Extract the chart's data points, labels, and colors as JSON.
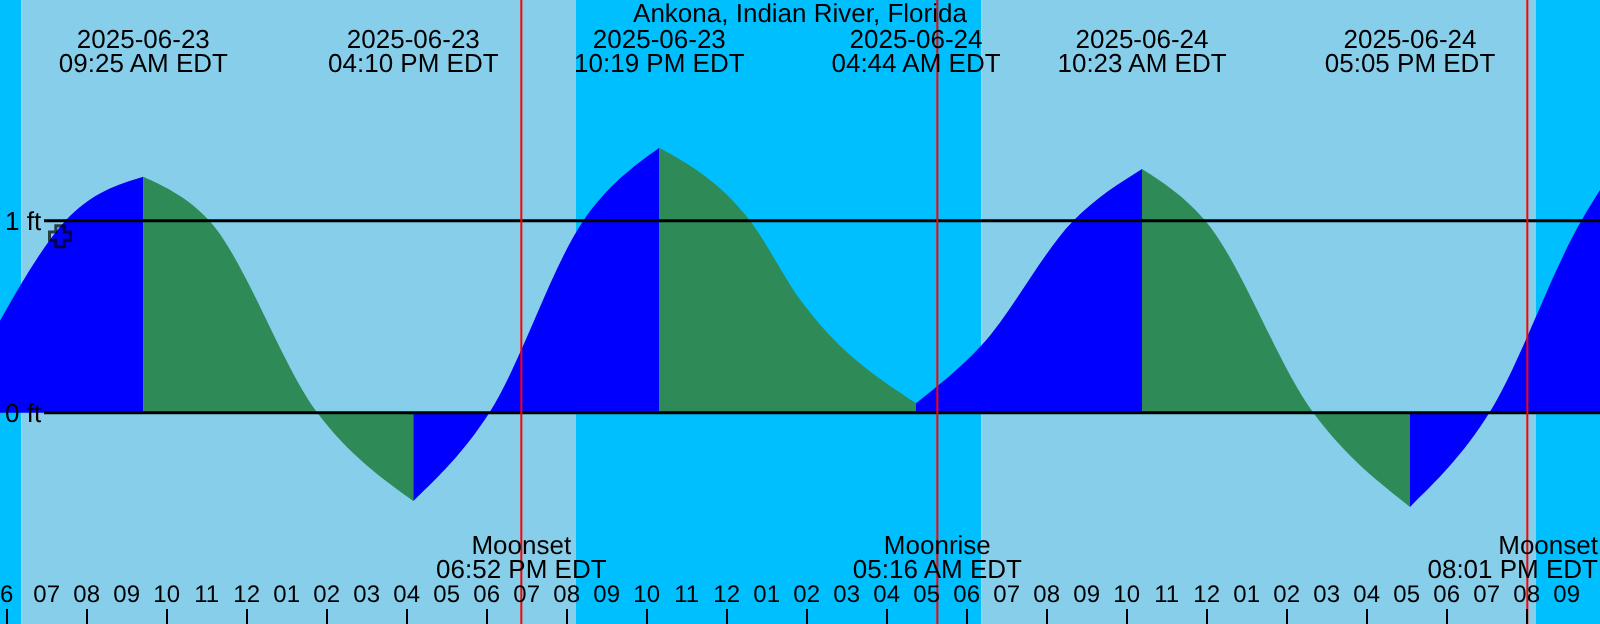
{
  "chart_data": {
    "type": "area",
    "title": "Ankona, Indian River, Florida",
    "xlim": [
      "2025-06-23T05:50",
      "2025-06-24T21:50"
    ],
    "ylim": [
      -1.1,
      2.15
    ],
    "xticks": [
      {
        "value": "2025-06-23T06:00",
        "label": "6"
      },
      {
        "value": "2025-06-23T07:00",
        "label": "07"
      },
      {
        "value": "2025-06-23T08:00",
        "label": "08"
      },
      {
        "value": "2025-06-23T09:00",
        "label": "09"
      },
      {
        "value": "2025-06-23T10:00",
        "label": "10"
      },
      {
        "value": "2025-06-23T11:00",
        "label": "11"
      },
      {
        "value": "2025-06-23T12:00",
        "label": "12"
      },
      {
        "value": "2025-06-23T13:00",
        "label": "01"
      },
      {
        "value": "2025-06-23T14:00",
        "label": "02"
      },
      {
        "value": "2025-06-23T15:00",
        "label": "03"
      },
      {
        "value": "2025-06-23T16:00",
        "label": "04"
      },
      {
        "value": "2025-06-23T17:00",
        "label": "05"
      },
      {
        "value": "2025-06-23T18:00",
        "label": "06"
      },
      {
        "value": "2025-06-23T19:00",
        "label": "07"
      },
      {
        "value": "2025-06-23T20:00",
        "label": "08"
      },
      {
        "value": "2025-06-23T21:00",
        "label": "09"
      },
      {
        "value": "2025-06-23T22:00",
        "label": "10"
      },
      {
        "value": "2025-06-23T23:00",
        "label": "11"
      },
      {
        "value": "2025-06-24T00:00",
        "label": "12"
      },
      {
        "value": "2025-06-24T01:00",
        "label": "01"
      },
      {
        "value": "2025-06-24T02:00",
        "label": "02"
      },
      {
        "value": "2025-06-24T03:00",
        "label": "03"
      },
      {
        "value": "2025-06-24T04:00",
        "label": "04"
      },
      {
        "value": "2025-06-24T05:00",
        "label": "05"
      },
      {
        "value": "2025-06-24T06:00",
        "label": "06"
      },
      {
        "value": "2025-06-24T07:00",
        "label": "07"
      },
      {
        "value": "2025-06-24T08:00",
        "label": "08"
      },
      {
        "value": "2025-06-24T09:00",
        "label": "09"
      },
      {
        "value": "2025-06-24T10:00",
        "label": "10"
      },
      {
        "value": "2025-06-24T11:00",
        "label": "11"
      },
      {
        "value": "2025-06-24T12:00",
        "label": "12"
      },
      {
        "value": "2025-06-24T13:00",
        "label": "01"
      },
      {
        "value": "2025-06-24T14:00",
        "label": "02"
      },
      {
        "value": "2025-06-24T15:00",
        "label": "03"
      },
      {
        "value": "2025-06-24T16:00",
        "label": "04"
      },
      {
        "value": "2025-06-24T17:00",
        "label": "05"
      },
      {
        "value": "2025-06-24T18:00",
        "label": "06"
      },
      {
        "value": "2025-06-24T19:00",
        "label": "07"
      },
      {
        "value": "2025-06-24T20:00",
        "label": "08"
      },
      {
        "value": "2025-06-24T21:00",
        "label": "09"
      }
    ],
    "x2lim": [
      "2025-06-23T05:50",
      "2025-06-24T21:50"
    ],
    "x2ticks": [
      {
        "value": "2025-06-23T09:25",
        "label": "2025-06-23\n09:25 AM EDT"
      },
      {
        "value": "2025-06-23T16:10",
        "label": "2025-06-23\n04:10 PM EDT"
      },
      {
        "value": "2025-06-23T22:19",
        "label": "2025-06-23\n10:19 PM EDT"
      },
      {
        "value": "2025-06-24T04:44",
        "label": "2025-06-24\n04:44 AM EDT"
      },
      {
        "value": "2025-06-24T10:23",
        "label": "2025-06-24\n10:23 AM EDT"
      },
      {
        "value": "2025-06-24T17:05",
        "label": "2025-06-24\n05:05 PM EDT"
      }
    ],
    "yticks": [
      {
        "value": 1,
        "label": "1 ft"
      },
      {
        "value": 0,
        "label": "0 ft"
      }
    ],
    "grid": "y",
    "bands": [
      {
        "axis": "x",
        "from": "2025-06-23T05:50",
        "to": "2025-06-23T06:22",
        "color": "#00bfff"
      },
      {
        "axis": "x",
        "from": "2025-06-23T06:22",
        "to": "2025-06-23T20:14",
        "color": "#87ceeb"
      },
      {
        "axis": "x",
        "from": "2025-06-23T20:14",
        "to": "2025-06-24T06:22",
        "color": "#00bfff"
      },
      {
        "axis": "x",
        "from": "2025-06-24T06:22",
        "to": "2025-06-24T20:14",
        "color": "#87ceeb"
      },
      {
        "axis": "x",
        "from": "2025-06-24T20:14",
        "to": "2025-06-24T21:50",
        "color": "#00bfff"
      }
    ],
    "ref_lines": [
      {
        "axis": "x",
        "value": "2025-06-23T18:52",
        "label": "Moonset\n06:52 PM EDT",
        "color": "#ff0000"
      },
      {
        "axis": "x",
        "value": "2025-06-24T05:16",
        "label": "Moonrise\n05:16 AM EDT",
        "color": "#ff0000"
      },
      {
        "axis": "x",
        "value": "2025-06-24T20:01",
        "label": "Moonset\n08:01 PM EDT",
        "color": "#ff0000"
      }
    ],
    "series": [
      {
        "color": "#0000ff",
        "x": [
          "2025-06-23T05:50",
          "2025-06-23T07:28",
          "2025-06-23T09:25"
        ],
        "values": [
          0.48,
          1.0,
          1.23
        ]
      },
      {
        "color": "#2e8b57",
        "x": [
          "2025-06-23T09:25",
          "2025-06-23T11:04",
          "2025-06-23T13:46",
          "2025-06-23T16:10"
        ],
        "values": [
          1.23,
          1.0,
          0,
          -0.46
        ]
      },
      {
        "color": "#0000ff",
        "x": [
          "2025-06-23T16:10",
          "2025-06-23T18:04",
          "2025-06-23T20:25",
          "2025-06-23T22:19"
        ],
        "values": [
          -0.46,
          0,
          1.0,
          1.38
        ]
      },
      {
        "color": "#2e8b57",
        "x": [
          "2025-06-23T22:19",
          "2025-06-24T00:35",
          "2025-06-24T01:50",
          "2025-06-24T04:44"
        ],
        "values": [
          1.38,
          1.0,
          0.59,
          0.05
        ]
      },
      {
        "color": "#0000ff",
        "x": [
          "2025-06-24T04:44",
          "2025-06-24T06:22",
          "2025-06-24T08:40",
          "2025-06-24T10:23"
        ],
        "values": [
          0.05,
          0.35,
          1.0,
          1.27
        ]
      },
      {
        "color": "#2e8b57",
        "x": [
          "2025-06-24T10:23",
          "2025-06-24T11:58",
          "2025-06-24T14:40",
          "2025-06-24T17:05"
        ],
        "values": [
          1.27,
          1.0,
          0,
          -0.49
        ]
      },
      {
        "color": "#0000ff",
        "x": [
          "2025-06-24T17:05",
          "2025-06-24T19:04",
          "2025-06-24T21:22",
          "2025-06-24T21:50"
        ],
        "values": [
          -0.49,
          0,
          1.0,
          1.16
        ]
      },
      {
        "type": "scatter",
        "color": "#000000",
        "marker": "cross",
        "x": [
          "2025-06-23T07:20"
        ],
        "values": [
          0.92
        ]
      }
    ]
  }
}
